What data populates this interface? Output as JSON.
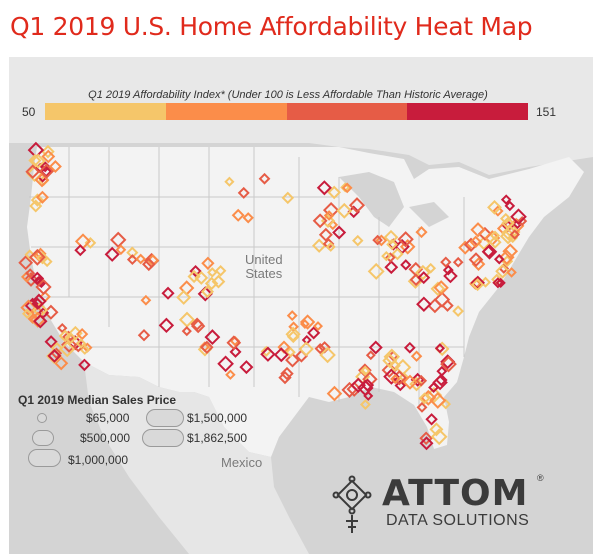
{
  "title": "Q1 2019 U.S. Home Affordability Heat Map",
  "legend": {
    "title": "Q1 2019 Affordability Index* (Under 100 is Less Affordable Than Historic Average)",
    "min_label": "50",
    "max_label": "151",
    "colors": [
      "#f5c66a",
      "#fb8d4a",
      "#e65c46",
      "#c81c3c"
    ]
  },
  "map_labels": {
    "country": "United\nStates",
    "neighbor": "Mexico"
  },
  "size_legend": {
    "title": "Q1 2019 Median Sales Price",
    "items": [
      {
        "label": "$65,000"
      },
      {
        "label": "$500,000"
      },
      {
        "label": "$1,000,000"
      },
      {
        "label": "$1,500,000"
      },
      {
        "label": "$1,862,500"
      }
    ]
  },
  "logo": {
    "name": "ATTOM",
    "tagline": "DATA SOLUTIONS",
    "registered": "®"
  },
  "colors": {
    "title": "#e02a1c",
    "land_us": "#f3f3f3",
    "water": "#d4d4d4",
    "land_other": "#e6e6e6"
  }
}
